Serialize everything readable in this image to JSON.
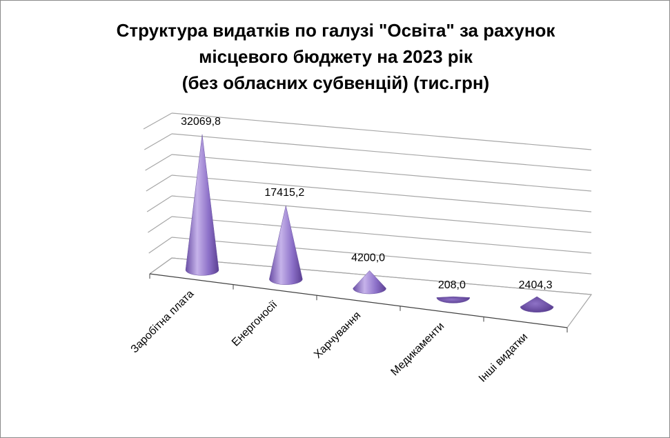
{
  "chart_data": {
    "type": "bar",
    "shape": "cone",
    "view": "3d",
    "title_lines": [
      "Структура видатків по галузі \"Освіта\" за рахунок",
      "місцевого бюджету на 2023 рік",
      "(без обласних субвенцій)  (тис.грн)"
    ],
    "categories": [
      "Заробітна плата",
      "Енергоносії",
      "Харчування",
      "Медикаменти",
      "Інші видатки"
    ],
    "values": [
      32069.8,
      17415.2,
      4200.0,
      208.0,
      2404.3
    ],
    "value_labels": [
      "32069,8",
      "17415,2",
      "4200,0",
      "208,0",
      "2404,3"
    ],
    "ylim": [
      0,
      35000
    ],
    "y_tick_step": 5000,
    "grid": true,
    "legend": "none",
    "colors": {
      "cone_light": "#c6b3ea",
      "cone_mid": "#8c70c8",
      "cone_dark": "#5b3f92",
      "grid": "#a6a6a6",
      "axis": "#404040"
    }
  }
}
